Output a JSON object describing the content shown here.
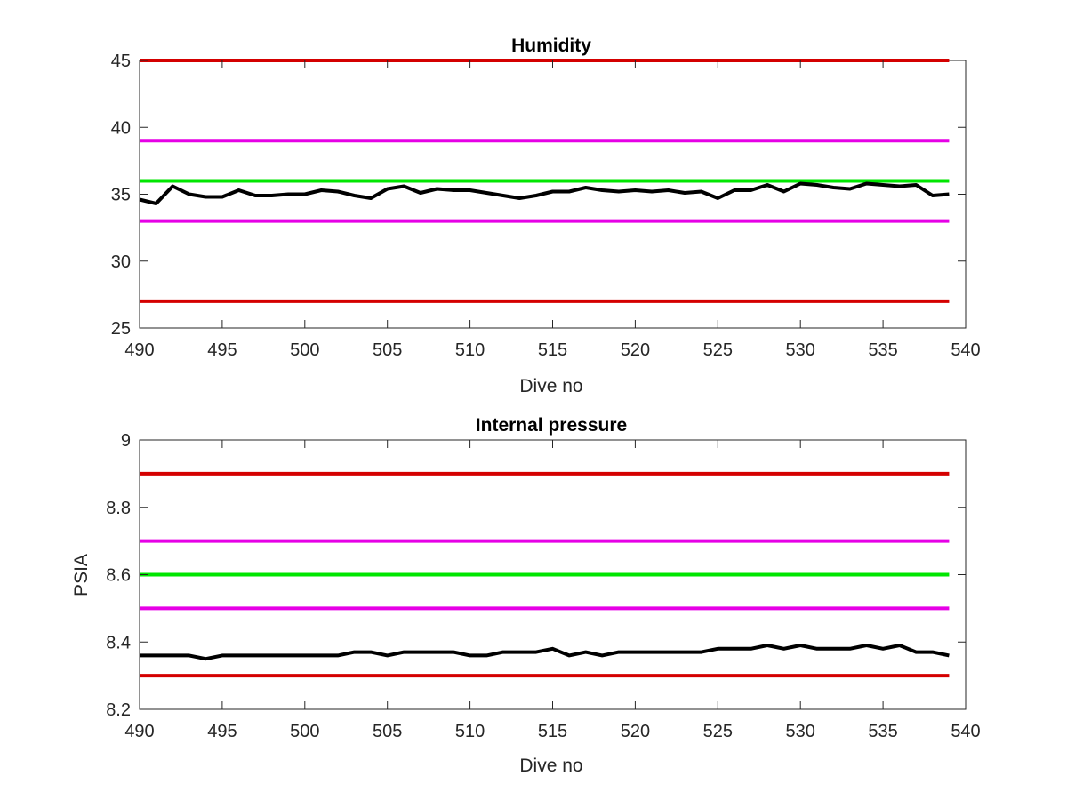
{
  "chart_data": [
    {
      "type": "line",
      "title": "Humidity",
      "xlabel": "Dive no",
      "ylabel": "",
      "xlim": [
        490,
        540
      ],
      "ylim": [
        25,
        45
      ],
      "xticks": [
        "490",
        "495",
        "500",
        "505",
        "510",
        "515",
        "520",
        "525",
        "530",
        "535",
        "540"
      ],
      "yticks": [
        "25",
        "30",
        "35",
        "40",
        "45"
      ],
      "grid": false,
      "limit_lines": [
        {
          "value": 45,
          "color": "#d40000"
        },
        {
          "value": 39,
          "color": "#e600e6"
        },
        {
          "value": 36,
          "color": "#00e600"
        },
        {
          "value": 33,
          "color": "#e600e6"
        },
        {
          "value": 27,
          "color": "#d40000"
        }
      ],
      "series": [
        {
          "color": "#000000",
          "x": [
            490,
            491,
            492,
            493,
            494,
            495,
            496,
            497,
            498,
            499,
            500,
            501,
            502,
            503,
            504,
            505,
            506,
            507,
            508,
            509,
            510,
            511,
            512,
            513,
            514,
            515,
            516,
            517,
            518,
            519,
            520,
            521,
            522,
            523,
            524,
            525,
            526,
            527,
            528,
            529,
            530,
            531,
            532,
            533,
            534,
            535,
            536,
            537,
            538,
            539
          ],
          "values": [
            34.6,
            34.3,
            35.6,
            35.0,
            34.8,
            34.8,
            35.3,
            34.9,
            34.9,
            35.0,
            35.0,
            35.3,
            35.2,
            34.9,
            34.7,
            35.4,
            35.6,
            35.1,
            35.4,
            35.3,
            35.3,
            35.1,
            34.9,
            34.7,
            34.9,
            35.2,
            35.2,
            35.5,
            35.3,
            35.2,
            35.3,
            35.2,
            35.3,
            35.1,
            35.2,
            34.7,
            35.3,
            35.3,
            35.7,
            35.2,
            35.8,
            35.7,
            35.5,
            35.4,
            35.8,
            35.7,
            35.6,
            35.7,
            34.9,
            35.0
          ]
        }
      ]
    },
    {
      "type": "line",
      "title": "Internal pressure",
      "xlabel": "Dive no",
      "ylabel": "PSIA",
      "xlim": [
        490,
        540
      ],
      "ylim": [
        8.2,
        9
      ],
      "xticks": [
        "490",
        "495",
        "500",
        "505",
        "510",
        "515",
        "520",
        "525",
        "530",
        "535",
        "540"
      ],
      "yticks": [
        "8.2",
        "8.4",
        "8.6",
        "8.8",
        "9"
      ],
      "grid": false,
      "limit_lines": [
        {
          "value": 8.9,
          "color": "#d40000"
        },
        {
          "value": 8.7,
          "color": "#e600e6"
        },
        {
          "value": 8.6,
          "color": "#00e600"
        },
        {
          "value": 8.5,
          "color": "#e600e6"
        },
        {
          "value": 8.3,
          "color": "#d40000"
        }
      ],
      "series": [
        {
          "color": "#000000",
          "x": [
            490,
            491,
            492,
            493,
            494,
            495,
            496,
            497,
            498,
            499,
            500,
            501,
            502,
            503,
            504,
            505,
            506,
            507,
            508,
            509,
            510,
            511,
            512,
            513,
            514,
            515,
            516,
            517,
            518,
            519,
            520,
            521,
            522,
            523,
            524,
            525,
            526,
            527,
            528,
            529,
            530,
            531,
            532,
            533,
            534,
            535,
            536,
            537,
            538,
            539
          ],
          "values": [
            8.36,
            8.36,
            8.36,
            8.36,
            8.35,
            8.36,
            8.36,
            8.36,
            8.36,
            8.36,
            8.36,
            8.36,
            8.36,
            8.37,
            8.37,
            8.36,
            8.37,
            8.37,
            8.37,
            8.37,
            8.36,
            8.36,
            8.37,
            8.37,
            8.37,
            8.38,
            8.36,
            8.37,
            8.36,
            8.37,
            8.37,
            8.37,
            8.37,
            8.37,
            8.37,
            8.38,
            8.38,
            8.38,
            8.39,
            8.38,
            8.39,
            8.38,
            8.38,
            8.38,
            8.39,
            8.38,
            8.39,
            8.37,
            8.37,
            8.36
          ]
        }
      ]
    }
  ]
}
